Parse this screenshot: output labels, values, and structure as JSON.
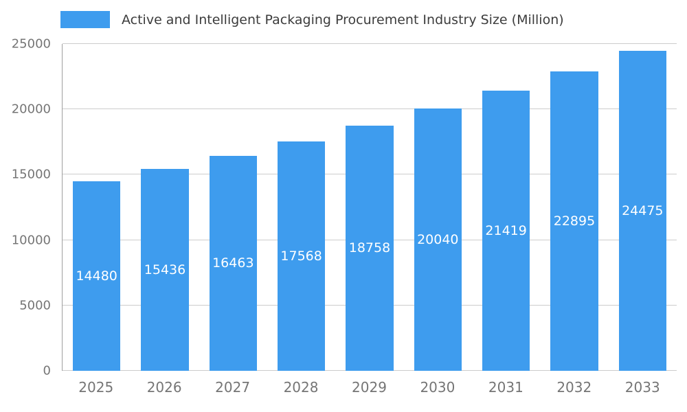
{
  "chart_data": {
    "type": "bar",
    "title": "Active and Intelligent Packaging Procurement Industry Size (Million)",
    "categories": [
      "2025",
      "2026",
      "2027",
      "2028",
      "2029",
      "2030",
      "2031",
      "2032",
      "2033"
    ],
    "values": [
      14480,
      15436,
      16463,
      17568,
      18758,
      20040,
      21419,
      22895,
      24475
    ],
    "xlabel": "",
    "ylabel": "",
    "ylim": [
      0,
      25000
    ],
    "yticks": [
      0,
      5000,
      10000,
      15000,
      20000,
      25000
    ],
    "grid": true,
    "legend_position": "top-left",
    "bar_color": "#3e9cee",
    "value_label_color": "#ffffff",
    "axis_text_color": "#757575",
    "gridline_color": "#cccccc"
  }
}
